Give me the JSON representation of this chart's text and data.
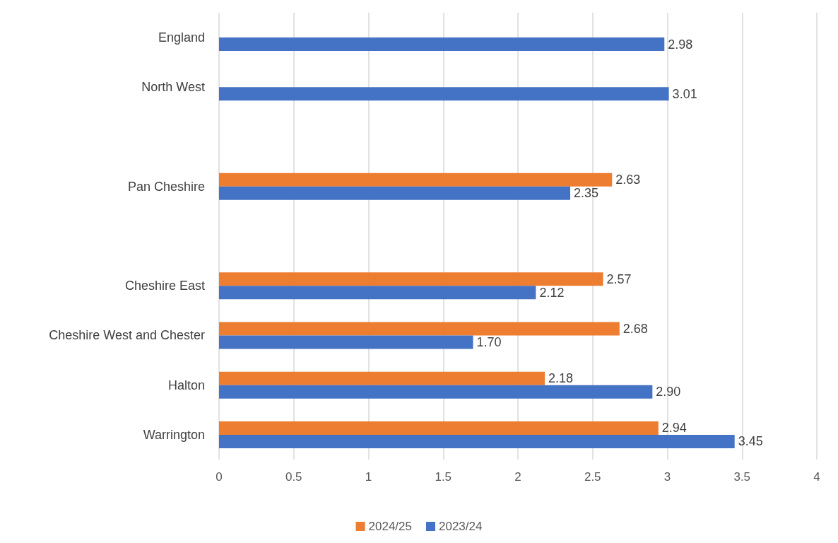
{
  "chart_data": {
    "type": "bar",
    "orientation": "horizontal",
    "categories": [
      "England",
      "North West",
      null,
      "Pan Cheshire",
      null,
      "Cheshire East",
      "Cheshire West and Chester",
      "Halton",
      "Warrington"
    ],
    "series": [
      {
        "name": "2024/25",
        "color": "#ed7d31",
        "values": [
          null,
          null,
          null,
          2.63,
          null,
          2.57,
          2.68,
          2.18,
          2.94
        ],
        "value_labels": [
          null,
          null,
          null,
          "2.63",
          null,
          "2.57",
          "2.68",
          "2.18",
          "2.94"
        ]
      },
      {
        "name": "2023/24",
        "color": "#4472c4",
        "values": [
          2.98,
          3.01,
          null,
          2.35,
          null,
          2.12,
          1.7,
          2.9,
          3.45
        ],
        "value_labels": [
          "2.98",
          "3.01",
          null,
          "2.35",
          null,
          "2.12",
          "1.70",
          "2.90",
          "3.45"
        ]
      }
    ],
    "xlim": [
      0,
      4
    ],
    "xticks": [
      0,
      0.5,
      1,
      1.5,
      2,
      2.5,
      3,
      3.5,
      4
    ],
    "grid": "x",
    "legend": "bottom"
  }
}
